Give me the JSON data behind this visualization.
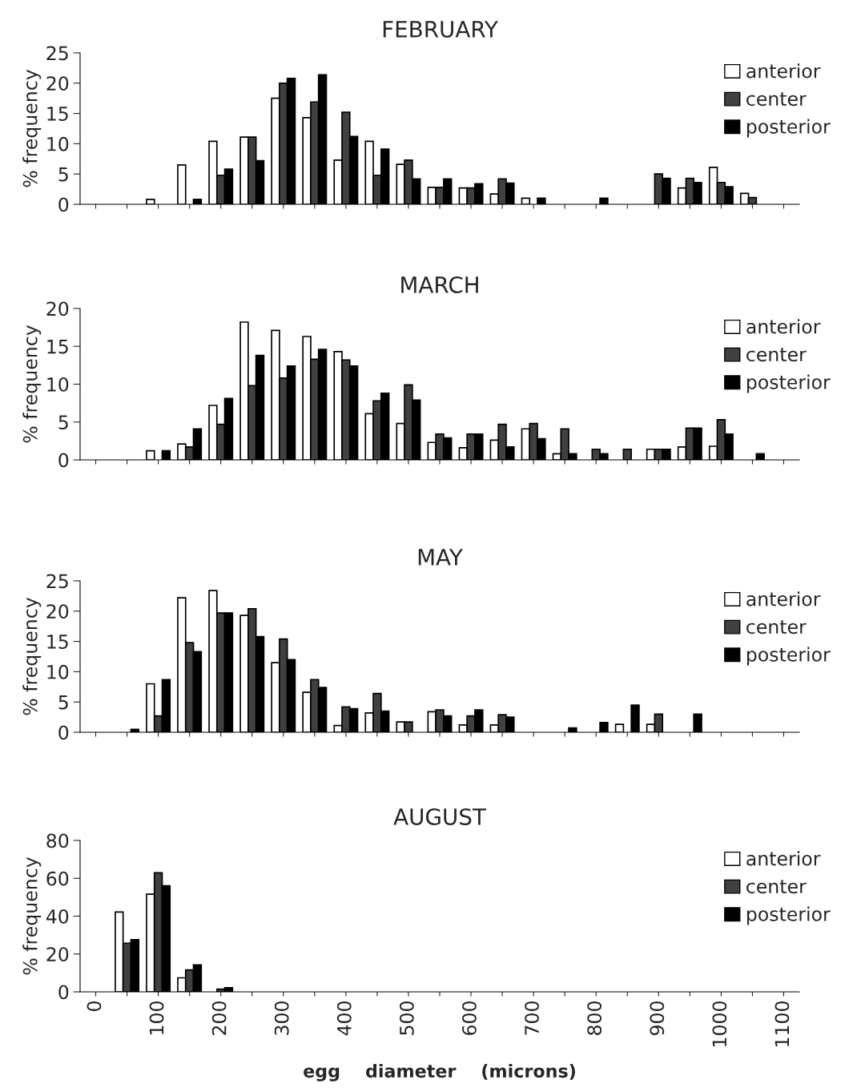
{
  "chart_data": [
    {
      "type": "bar",
      "title": "FEBRUARY",
      "ylabel": "% frequency",
      "categories": [
        "0",
        null,
        "100",
        null,
        "200",
        null,
        "300",
        null,
        "400",
        null,
        "500",
        null,
        "600",
        null,
        "700",
        null,
        "800",
        null,
        "900",
        null,
        "1000",
        null,
        "1100"
      ],
      "ylim": [
        0,
        25
      ],
      "yticks": [
        0,
        5,
        10,
        15,
        20,
        25
      ],
      "tick_labels": "y",
      "legend": "top right",
      "grid": false,
      "series": [
        {
          "name": "anterior",
          "color": "#ffffff",
          "values": [
            0,
            0,
            0.8,
            6.5,
            10.4,
            11.1,
            17.5,
            14.3,
            7.3,
            10.4,
            6.6,
            2.8,
            2.7,
            1.7,
            1.0,
            0,
            0,
            0,
            0,
            2.7,
            6.1,
            1.8,
            0
          ]
        },
        {
          "name": "center",
          "color": "#404040",
          "values": [
            0,
            0,
            0,
            0,
            4.8,
            11.1,
            20.0,
            16.9,
            15.2,
            4.8,
            7.3,
            2.8,
            2.7,
            4.2,
            0,
            0,
            0,
            0,
            5.0,
            4.3,
            3.6,
            1.1,
            0
          ]
        },
        {
          "name": "posterior",
          "color": "#000000",
          "values": [
            0,
            0,
            0,
            0.8,
            5.8,
            7.2,
            20.8,
            21.4,
            11.2,
            9.1,
            4.2,
            4.2,
            3.4,
            3.5,
            1.0,
            0,
            1.0,
            0,
            4.3,
            3.6,
            2.9,
            0,
            0
          ]
        }
      ]
    },
    {
      "type": "bar",
      "title": "MARCH",
      "ylabel": "% frequency",
      "categories": [
        "0",
        null,
        "100",
        null,
        "200",
        null,
        "300",
        null,
        "400",
        null,
        "500",
        null,
        "600",
        null,
        "700",
        null,
        "800",
        null,
        "900",
        null,
        "1000",
        null,
        "1100"
      ],
      "ylim": [
        0,
        20
      ],
      "yticks": [
        0,
        5,
        10,
        15,
        20
      ],
      "tick_labels": "y",
      "legend": "top right",
      "grid": false,
      "series": [
        {
          "name": "anterior",
          "color": "#ffffff",
          "values": [
            0,
            0,
            1.2,
            2.1,
            7.2,
            18.2,
            17.1,
            16.3,
            14.3,
            6.1,
            4.8,
            2.3,
            1.6,
            2.6,
            4.1,
            0.8,
            0,
            0,
            1.4,
            1.7,
            1.8,
            0,
            0
          ]
        },
        {
          "name": "center",
          "color": "#404040",
          "values": [
            0,
            0,
            0,
            1.7,
            4.7,
            9.8,
            10.8,
            13.3,
            13.2,
            7.8,
            9.9,
            3.4,
            3.4,
            4.7,
            4.8,
            4.1,
            1.4,
            1.4,
            1.4,
            4.2,
            5.3,
            0,
            0
          ]
        },
        {
          "name": "posterior",
          "color": "#000000",
          "values": [
            0,
            0,
            1.2,
            4.1,
            8.1,
            13.8,
            12.4,
            14.6,
            12.4,
            8.8,
            7.9,
            2.9,
            3.4,
            1.7,
            2.8,
            0.8,
            0.8,
            0,
            1.4,
            4.2,
            3.4,
            0.8,
            0
          ]
        }
      ]
    },
    {
      "type": "bar",
      "title": "MAY",
      "ylabel": "% frequency",
      "categories": [
        "0",
        null,
        "100",
        null,
        "200",
        null,
        "300",
        null,
        "400",
        null,
        "500",
        null,
        "600",
        null,
        "700",
        null,
        "800",
        null,
        "900",
        null,
        "1000",
        null,
        "1100"
      ],
      "ylim": [
        0,
        25
      ],
      "yticks": [
        0,
        5,
        10,
        15,
        20,
        25
      ],
      "tick_labels": "y",
      "legend": "top right",
      "grid": false,
      "series": [
        {
          "name": "anterior",
          "color": "#ffffff",
          "values": [
            0,
            0,
            8.0,
            22.2,
            23.4,
            19.3,
            11.5,
            6.6,
            1.1,
            3.2,
            1.7,
            3.4,
            1.2,
            1.2,
            0,
            0,
            0,
            1.3,
            1.3,
            0,
            0,
            0,
            0
          ]
        },
        {
          "name": "center",
          "color": "#404040",
          "values": [
            0,
            0,
            2.7,
            14.8,
            19.7,
            20.4,
            15.4,
            8.7,
            4.2,
            6.4,
            1.7,
            3.7,
            2.7,
            2.9,
            0,
            0,
            0,
            0,
            3.0,
            0,
            0,
            0,
            0
          ]
        },
        {
          "name": "posterior",
          "color": "#000000",
          "values": [
            0,
            0.5,
            8.7,
            13.3,
            19.7,
            15.8,
            12.0,
            7.4,
            3.9,
            3.5,
            0,
            2.7,
            3.7,
            2.5,
            0,
            0.7,
            1.6,
            4.5,
            0,
            3.0,
            0,
            0,
            0
          ]
        }
      ]
    },
    {
      "type": "bar",
      "title": "AUGUST",
      "ylabel": "% frequency",
      "xlabel": "egg    diameter    (microns)",
      "categories": [
        "0",
        null,
        "100",
        null,
        "200",
        null,
        "300",
        null,
        "400",
        null,
        "500",
        null,
        "600",
        null,
        "700",
        null,
        "800",
        null,
        "900",
        null,
        "1000",
        null,
        "1100"
      ],
      "ylim": [
        0,
        80
      ],
      "yticks": [
        0,
        20,
        40,
        60,
        80
      ],
      "legend": "top right",
      "grid": false,
      "series": [
        {
          "name": "anterior",
          "color": "#ffffff",
          "values": [
            0,
            42.2,
            51.6,
            7.4,
            0,
            0,
            0,
            0,
            0,
            0,
            0,
            0,
            0,
            0,
            0,
            0,
            0,
            0,
            0,
            0,
            0,
            0,
            0
          ]
        },
        {
          "name": "center",
          "color": "#404040",
          "values": [
            0,
            25.7,
            62.9,
            11.6,
            1.4,
            0,
            0,
            0,
            0,
            0,
            0,
            0,
            0,
            0,
            0,
            0,
            0,
            0,
            0,
            0,
            0,
            0,
            0
          ]
        },
        {
          "name": "posterior",
          "color": "#000000",
          "values": [
            0,
            27.6,
            56.0,
            14.3,
            2.2,
            0,
            0,
            0,
            0,
            0,
            0,
            0,
            0,
            0,
            0,
            0,
            0,
            0,
            0,
            0,
            0,
            0,
            0
          ]
        }
      ]
    }
  ]
}
